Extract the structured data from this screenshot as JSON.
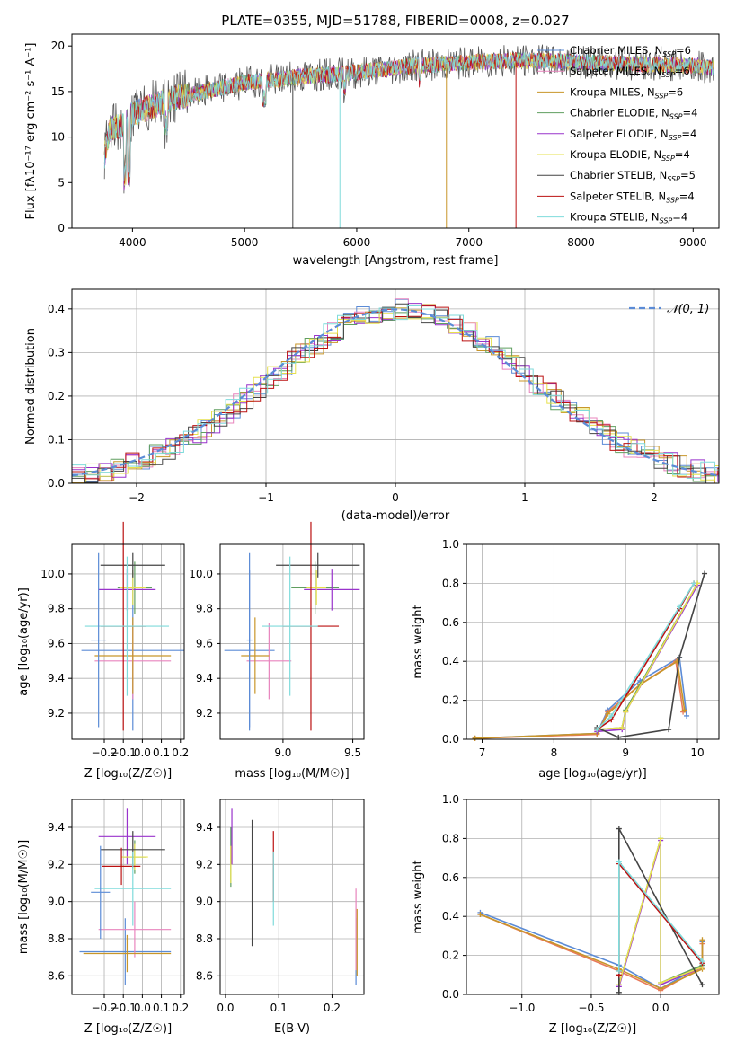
{
  "title": "PLATE=0355, MJD=51788, FIBERID=0008, z=0.027",
  "colors": [
    "#5b8bd6",
    "#e884bd",
    "#c8962a",
    "#5f9e5f",
    "#9933cc",
    "#e6e04d",
    "#444444",
    "#bb1111",
    "#7fdbdb"
  ],
  "spectrum": {
    "xlabel": "wavelength [Angstrom, rest frame]",
    "ylabel": "Flux [fλ10⁻¹⁷ erg cm⁻² s⁻¹ A⁻¹]",
    "xlim": [
      3460,
      9230
    ],
    "ylim": [
      0,
      21.3
    ],
    "xticks": [
      "4000",
      "5000",
      "6000",
      "7000",
      "8000",
      "9000"
    ],
    "yticks": [
      "0",
      "5",
      "10",
      "15",
      "20"
    ],
    "legend": [
      "Chabrier MILES, N_SSP=6",
      "Salpeter MILES, N_SSP=6",
      "Kroupa MILES, N_SSP=6",
      "Chabrier ELODIE, N_SSP=4",
      "Salpeter ELODIE, N_SSP=4",
      "Kroupa ELODIE, N_SSP=4",
      "Chabrier STELIB, N_SSP=5",
      "Salpeter STELIB, N_SSP=4",
      "Kroupa STELIB, N_SSP=4"
    ],
    "continuum": [
      [
        3750,
        8
      ],
      [
        3800,
        11
      ],
      [
        3900,
        11.2
      ],
      [
        4000,
        12.5
      ],
      [
        4100,
        13
      ],
      [
        4300,
        14
      ],
      [
        4500,
        14.6
      ],
      [
        5000,
        16
      ],
      [
        5500,
        16.6
      ],
      [
        6000,
        17.1
      ],
      [
        6500,
        17.8
      ],
      [
        7000,
        18.2
      ],
      [
        7400,
        18.4
      ],
      [
        7600,
        18.4
      ],
      [
        8000,
        18.2
      ],
      [
        8500,
        18
      ],
      [
        9000,
        17.8
      ],
      [
        9180,
        17.6
      ]
    ],
    "dropouts": [
      [
        5430,
        6
      ],
      [
        5850,
        7
      ],
      [
        6800,
        2
      ],
      [
        7420,
        7
      ]
    ]
  },
  "residuals": {
    "xlabel": "(data-model)/error",
    "ylabel": "Normed distribution",
    "legend": "𝒩(0, 1)",
    "xlim": [
      -2.5,
      2.5
    ],
    "ylim": [
      0,
      0.445
    ],
    "xticks": [
      "-2",
      "-1",
      "0",
      "1",
      "2"
    ],
    "yticks": [
      "0.0",
      "0.1",
      "0.2",
      "0.3",
      "0.4"
    ]
  },
  "panels": {
    "z_age": {
      "xlabel": "Z [log₁₀(Z/Z☉)]",
      "ylabel": "age  [log₁₀(age/yr)]",
      "xlim": [
        -0.37,
        0.22
      ],
      "ylim": [
        9.05,
        10.17
      ],
      "xticks": [
        "-0.2",
        "-0.1",
        "0.0",
        "0.1",
        "0.2"
      ],
      "xtickv": [
        -0.2,
        -0.1,
        0,
        0.1,
        0.2
      ],
      "yticks": [
        "9.2",
        "9.4",
        "9.6",
        "9.8",
        "10.0"
      ],
      "ytickv": [
        9.2,
        9.4,
        9.6,
        9.8,
        10.0
      ]
    },
    "mass_age": {
      "xlabel": "mass [log₁₀(M/M☉)]",
      "xlim": [
        8.55,
        9.58
      ],
      "ylim": [
        9.05,
        10.17
      ],
      "xticks": [
        "9.0",
        "9.5"
      ],
      "xtickv": [
        9.0,
        9.5
      ],
      "yticks": [
        "9.2",
        "9.4",
        "9.6",
        "9.8",
        "10.0"
      ],
      "ytickv": [
        9.2,
        9.4,
        9.6,
        9.8,
        10.0
      ]
    },
    "age_weight": {
      "xlabel": "age  [log₁₀(age/yr)]",
      "ylabel": "mass weight",
      "xlim": [
        6.78,
        10.3
      ],
      "ylim": [
        0,
        1.0
      ],
      "xticks": [
        "7",
        "8",
        "9",
        "10"
      ],
      "xtickv": [
        7,
        8,
        9,
        10
      ],
      "yticks": [
        "0.0",
        "0.2",
        "0.4",
        "0.6",
        "0.8",
        "1.0"
      ],
      "ytickv": [
        0,
        0.2,
        0.4,
        0.6,
        0.8,
        1.0
      ]
    },
    "z_mass": {
      "xlabel": "Z [log₁₀(Z/Z☉)]",
      "ylabel": "mass [log₁₀(M/M☉)]",
      "xlim": [
        -0.37,
        0.22
      ],
      "ylim": [
        8.5,
        9.55
      ],
      "xticks": [
        "-0.2",
        "-0.1",
        "0.0",
        "0.1",
        "0.2"
      ],
      "xtickv": [
        -0.2,
        -0.1,
        0,
        0.1,
        0.2
      ],
      "yticks": [
        "8.6",
        "8.8",
        "9.0",
        "9.2",
        "9.4"
      ],
      "ytickv": [
        8.6,
        8.8,
        9.0,
        9.2,
        9.4
      ]
    },
    "ebv_mass": {
      "xlabel": "E(B-V)",
      "xlim": [
        -0.01,
        0.26
      ],
      "ylim": [
        8.5,
        9.55
      ],
      "xticks": [
        "0.0",
        "0.1",
        "0.2"
      ],
      "xtickv": [
        0,
        0.1,
        0.2
      ],
      "yticks": [
        "8.6",
        "8.8",
        "9.0",
        "9.2",
        "9.4"
      ],
      "ytickv": [
        8.6,
        8.8,
        9.0,
        9.2,
        9.4
      ]
    },
    "z_weight": {
      "xlabel": "Z [log₁₀(Z/Z☉)]",
      "ylabel": "mass weight",
      "xlim": [
        -1.4,
        0.42
      ],
      "ylim": [
        0,
        1.0
      ],
      "xticks": [
        "-1.0",
        "-0.5",
        "0.0"
      ],
      "xtickv": [
        -1,
        -0.5,
        0
      ],
      "yticks": [
        "0.0",
        "0.2",
        "0.4",
        "0.6",
        "0.8",
        "1.0"
      ],
      "ytickv": [
        0,
        0.2,
        0.4,
        0.6,
        0.8,
        1.0
      ]
    }
  },
  "chart_data": [
    {
      "type": "line",
      "title": "PLATE=0355, MJD=51788, FIBERID=0008, z=0.027",
      "xlabel": "wavelength [Angstrom, rest frame]",
      "ylabel": "Flux [fλ10⁻¹⁷ erg cm⁻² s⁻¹ A⁻¹]",
      "xlim": [
        3460,
        9230
      ],
      "ylim": [
        0,
        21.3
      ],
      "legend_position": "top-right",
      "series": [
        {
          "name": "Chabrier MILES, N_SSP=6"
        },
        {
          "name": "Salpeter MILES, N_SSP=6"
        },
        {
          "name": "Kroupa MILES, N_SSP=6"
        },
        {
          "name": "Chabrier ELODIE, N_SSP=4"
        },
        {
          "name": "Salpeter ELODIE, N_SSP=4"
        },
        {
          "name": "Kroupa ELODIE, N_SSP=4"
        },
        {
          "name": "Chabrier STELIB, N_SSP=5"
        },
        {
          "name": "Salpeter STELIB, N_SSP=4"
        },
        {
          "name": "Kroupa STELIB, N_SSP=4"
        }
      ]
    },
    {
      "type": "bar",
      "xlabel": "(data-model)/error",
      "ylabel": "Normed distribution",
      "xlim": [
        -2.5,
        2.5
      ],
      "ylim": [
        0,
        0.445
      ],
      "grid": true,
      "legend_position": "top-right",
      "overlay": {
        "name": "𝒩(0, 1)",
        "mean": 0,
        "sigma": 1
      }
    },
    {
      "type": "scatter",
      "xlabel": "age  [log₁₀(age/yr)]",
      "ylabel": "mass weight",
      "xlim": [
        6.78,
        10.3
      ],
      "ylim": [
        0,
        1.0
      ],
      "grid": true,
      "series": [
        {
          "x": [
            6.9,
            8.6,
            8.75,
            9.2,
            9.75,
            9.85
          ],
          "y": [
            0.005,
            0.03,
            0.15,
            0.3,
            0.42,
            0.12
          ]
        },
        {
          "x": [
            6.9,
            8.6,
            8.75,
            9.2,
            9.7,
            9.8
          ],
          "y": [
            0.005,
            0.025,
            0.14,
            0.28,
            0.4,
            0.14
          ]
        },
        {
          "x": [
            6.9,
            8.6,
            8.75,
            9.2,
            9.72,
            9.82
          ],
          "y": [
            0.005,
            0.03,
            0.13,
            0.28,
            0.4,
            0.15
          ]
        },
        {
          "x": [
            8.6,
            8.95,
            9.0,
            10.0
          ],
          "y": [
            0.05,
            0.06,
            0.15,
            0.8
          ]
        },
        {
          "x": [
            8.6,
            8.95,
            9.0,
            10.0
          ],
          "y": [
            0.04,
            0.05,
            0.14,
            0.79
          ]
        },
        {
          "x": [
            8.6,
            8.95,
            9.0,
            10.0
          ],
          "y": [
            0.05,
            0.06,
            0.14,
            0.8
          ]
        },
        {
          "x": [
            8.6,
            8.9,
            9.6,
            9.75,
            10.1
          ],
          "y": [
            0.06,
            0.01,
            0.05,
            0.42,
            0.85
          ]
        },
        {
          "x": [
            8.6,
            8.8,
            9.75,
            9.95
          ],
          "y": [
            0.05,
            0.1,
            0.67,
            0.8
          ]
        },
        {
          "x": [
            8.6,
            8.8,
            9.75,
            9.95
          ],
          "y": [
            0.05,
            0.12,
            0.68,
            0.8
          ]
        }
      ]
    },
    {
      "type": "scatter",
      "xlabel": "Z [log₁₀(Z/Z☉)]",
      "ylabel": "mass weight",
      "xlim": [
        -1.4,
        0.42
      ],
      "ylim": [
        0,
        1.0
      ],
      "grid": true,
      "series": [
        {
          "x": [
            -1.3,
            -0.3,
            0.0,
            0.3,
            0.3
          ],
          "y": [
            0.42,
            0.15,
            0.03,
            0.15,
            0.27
          ]
        },
        {
          "x": [
            -1.3,
            -0.3,
            0.0,
            0.3,
            0.3
          ],
          "y": [
            0.41,
            0.12,
            0.02,
            0.14,
            0.26
          ]
        },
        {
          "x": [
            -1.3,
            -0.3,
            0.0,
            0.3,
            0.3
          ],
          "y": [
            0.41,
            0.13,
            0.03,
            0.13,
            0.28
          ]
        },
        {
          "x": [
            -0.3,
            0.0,
            0.0,
            0.3
          ],
          "y": [
            0.05,
            0.8,
            0.06,
            0.15
          ]
        },
        {
          "x": [
            -0.3,
            0.0,
            0.0,
            0.3
          ],
          "y": [
            0.04,
            0.79,
            0.05,
            0.14
          ]
        },
        {
          "x": [
            -0.3,
            0.0,
            0.0,
            0.3
          ],
          "y": [
            0.05,
            0.8,
            0.06,
            0.14
          ]
        },
        {
          "x": [
            -0.3,
            -0.3,
            0.3
          ],
          "y": [
            0.01,
            0.85,
            0.05
          ]
        },
        {
          "x": [
            -0.3,
            -0.3,
            0.3
          ],
          "y": [
            0.1,
            0.67,
            0.16
          ]
        },
        {
          "x": [
            -0.3,
            -0.3,
            0.3
          ],
          "y": [
            0.12,
            0.68,
            0.17
          ]
        }
      ]
    }
  ],
  "errorbars": {
    "z_age": [
      {
        "x": -0.05,
        "xe": 0.27,
        "y": 9.56,
        "ye": 0.46
      },
      {
        "x": -0.05,
        "xe": 0.2,
        "y": 9.5,
        "ye": 0.22
      },
      {
        "x": -0.05,
        "xe": 0.2,
        "y": 9.53,
        "ye": 0.22
      },
      {
        "x": -0.04,
        "xe": 0.09,
        "y": 9.92,
        "ye": 0.15
      },
      {
        "x": -0.08,
        "xe": 0.15,
        "y": 9.91,
        "ye": 0.12
      },
      {
        "x": -0.05,
        "xe": 0.07,
        "y": 9.92,
        "ye": 0.1
      },
      {
        "x": -0.05,
        "xe": 0.17,
        "y": 10.05,
        "ye": 0.07
      },
      {
        "x": -0.1,
        "xe": 0.12,
        "y": 9.7,
        "ye": 0.6
      },
      {
        "x": -0.08,
        "xe": 0.22,
        "y": 9.7,
        "ye": 0.4
      },
      {
        "x": -0.23,
        "xe": 0.04,
        "y": 9.62,
        "ye": 0.5
      }
    ],
    "mass_age": [
      {
        "x": 8.76,
        "xe": 0.18,
        "y": 9.56,
        "ye": 0.46
      },
      {
        "x": 8.9,
        "xe": 0.16,
        "y": 9.5,
        "ye": 0.22
      },
      {
        "x": 8.8,
        "xe": 0.1,
        "y": 9.53,
        "ye": 0.22
      },
      {
        "x": 9.23,
        "xe": 0.17,
        "y": 9.92,
        "ye": 0.15
      },
      {
        "x": 9.35,
        "xe": 0.2,
        "y": 9.91,
        "ye": 0.12
      },
      {
        "x": 9.24,
        "xe": 0.07,
        "y": 9.92,
        "ye": 0.1
      },
      {
        "x": 9.25,
        "xe": 0.3,
        "y": 10.05,
        "ye": 0.07
      },
      {
        "x": 9.2,
        "xe": 0.2,
        "y": 9.7,
        "ye": 0.6
      },
      {
        "x": 9.05,
        "xe": 0.2,
        "y": 9.7,
        "ye": 0.4
      },
      {
        "x": 8.76,
        "xe": 0.02,
        "y": 9.62,
        "ye": 0.5
      }
    ],
    "z_mass": [
      {
        "x": -0.09,
        "xe": 0.24,
        "y": 8.73,
        "ye": 0.18
      },
      {
        "x": -0.04,
        "xe": 0.19,
        "y": 8.85,
        "ye": 0.15
      },
      {
        "x": -0.08,
        "xe": 0.23,
        "y": 8.72,
        "ye": 0.1
      },
      {
        "x": -0.04,
        "xe": 0.06,
        "y": 9.24,
        "ye": 0.09
      },
      {
        "x": -0.08,
        "xe": 0.15,
        "y": 9.35,
        "ye": 0.15
      },
      {
        "x": -0.04,
        "xe": 0.07,
        "y": 9.24,
        "ye": 0.07
      },
      {
        "x": -0.05,
        "xe": 0.17,
        "y": 9.28,
        "ye": 0.1
      },
      {
        "x": -0.11,
        "xe": 0.1,
        "y": 9.19,
        "ye": 0.1
      },
      {
        "x": -0.05,
        "xe": 0.2,
        "y": 9.07,
        "ye": 0.2
      },
      {
        "x": -0.22,
        "xe": 0.05,
        "y": 9.05,
        "ye": 0.25
      }
    ],
    "ebv_mass": [
      {
        "x": 0.245,
        "y": 8.73,
        "ye": 0.18
      },
      {
        "x": 0.245,
        "y": 8.85,
        "ye": 0.22
      },
      {
        "x": 0.247,
        "y": 8.78,
        "ye": 0.18
      },
      {
        "x": 0.01,
        "y": 9.24,
        "ye": 0.16
      },
      {
        "x": 0.012,
        "y": 9.35,
        "ye": 0.15
      },
      {
        "x": 0.01,
        "y": 9.2,
        "ye": 0.1
      },
      {
        "x": 0.05,
        "y": 9.1,
        "ye": 0.34
      },
      {
        "x": 0.09,
        "y": 9.19,
        "ye": 0.19
      },
      {
        "x": 0.09,
        "y": 9.07,
        "ye": 0.2
      }
    ]
  }
}
